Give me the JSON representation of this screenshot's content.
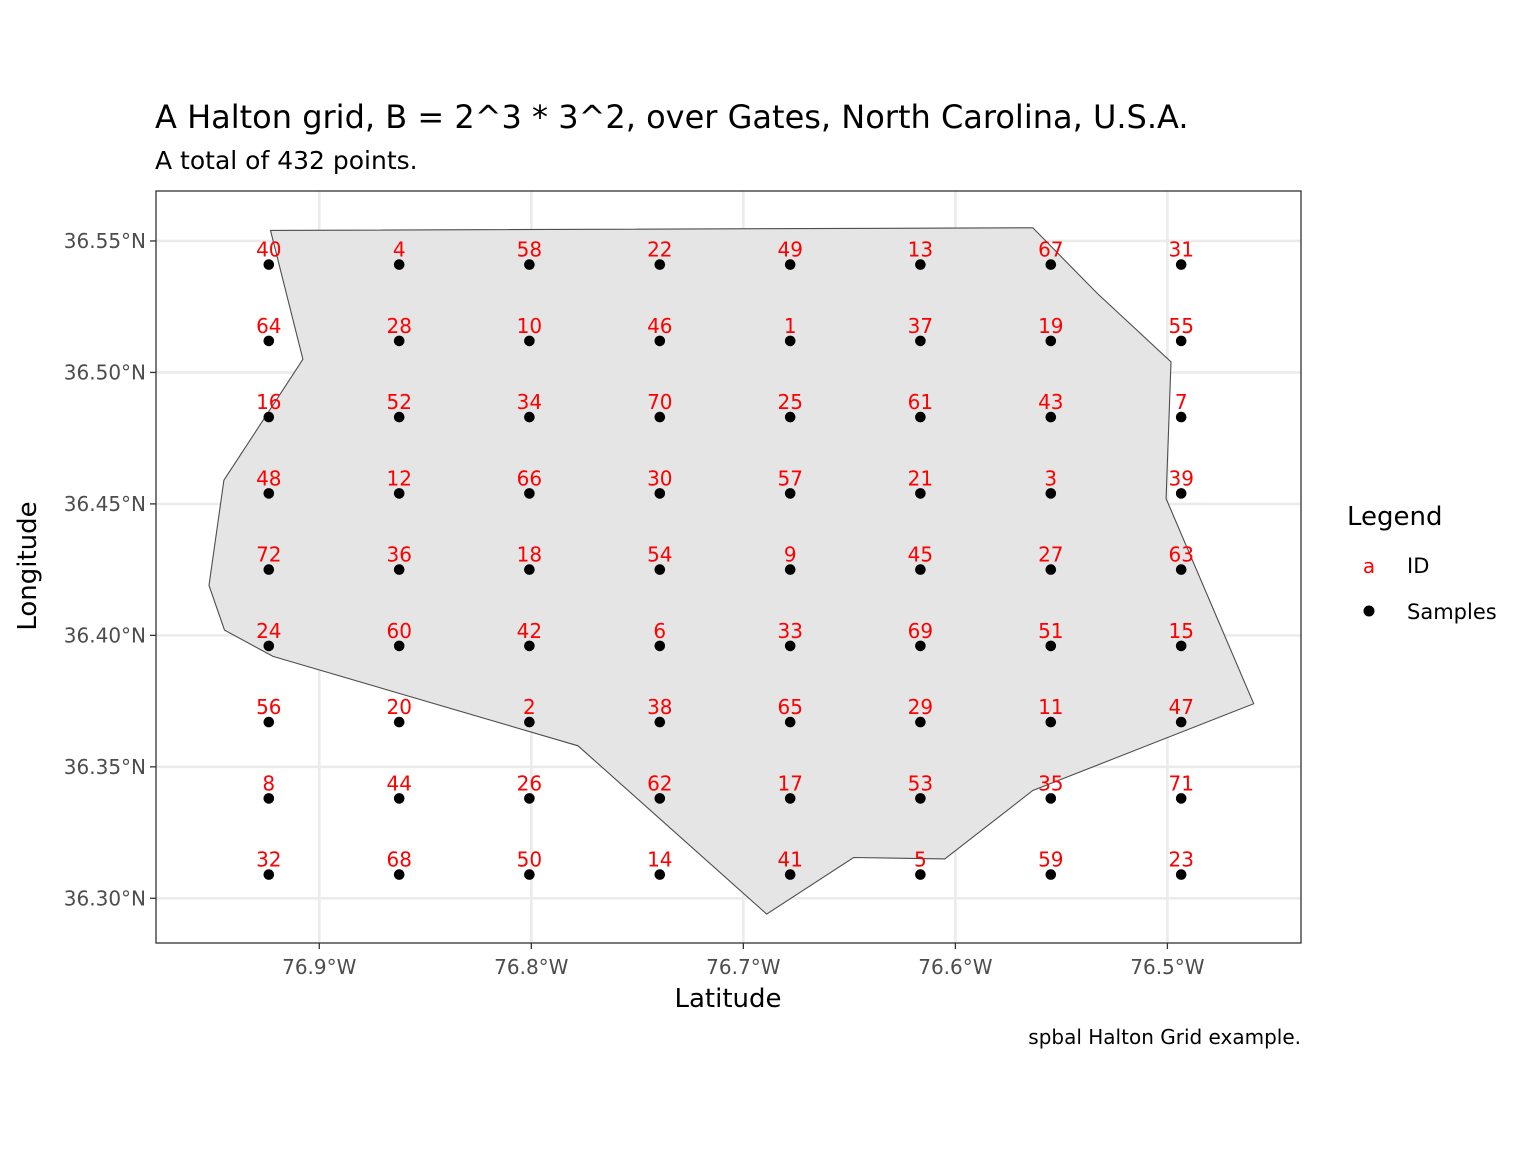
{
  "chart_data": {
    "type": "scatter",
    "title": "A Halton grid, B = 2^3 * 3^2, over Gates, North Carolina, U.S.A.",
    "subtitle": "A total of 432 points.",
    "caption": "spbal Halton Grid example.",
    "xlabel": "Latitude",
    "ylabel": "Longitude",
    "xlim": [
      -76.977,
      -76.437
    ],
    "ylim": [
      36.283,
      36.569
    ],
    "grid": true,
    "x_ticks": [
      {
        "value": -76.9,
        "label": "76.9°W"
      },
      {
        "value": -76.8,
        "label": "76.8°W"
      },
      {
        "value": -76.7,
        "label": "76.7°W"
      },
      {
        "value": -76.6,
        "label": "76.6°W"
      },
      {
        "value": -76.5,
        "label": "76.5°W"
      }
    ],
    "y_ticks": [
      {
        "value": 36.3,
        "label": "36.30°N"
      },
      {
        "value": 36.35,
        "label": "36.35°N"
      },
      {
        "value": 36.4,
        "label": "36.40°N"
      },
      {
        "value": 36.45,
        "label": "36.45°N"
      },
      {
        "value": 36.5,
        "label": "36.50°N"
      },
      {
        "value": 36.55,
        "label": "36.55°N"
      }
    ],
    "grid_x": [
      -76.9238,
      -76.8623,
      -76.8009,
      -76.7394,
      -76.6779,
      -76.6165,
      -76.555,
      -76.4935
    ],
    "grid_y": [
      36.541,
      36.512,
      36.483,
      36.454,
      36.425,
      36.396,
      36.367,
      36.338,
      36.309
    ],
    "ids": [
      [
        40,
        4,
        58,
        22,
        49,
        13,
        67,
        31
      ],
      [
        64,
        28,
        10,
        46,
        1,
        37,
        19,
        55
      ],
      [
        16,
        52,
        34,
        70,
        25,
        61,
        43,
        7
      ],
      [
        48,
        12,
        66,
        30,
        57,
        21,
        3,
        39
      ],
      [
        72,
        36,
        18,
        54,
        9,
        45,
        27,
        63
      ],
      [
        24,
        60,
        42,
        6,
        33,
        69,
        51,
        15
      ],
      [
        56,
        20,
        2,
        38,
        65,
        29,
        11,
        47
      ],
      [
        8,
        44,
        26,
        62,
        17,
        53,
        35,
        71
      ],
      [
        32,
        68,
        50,
        14,
        41,
        5,
        59,
        23
      ]
    ],
    "boundary": [
      [
        -76.923,
        36.554
      ],
      [
        -76.5635,
        36.555
      ],
      [
        -76.533,
        36.53
      ],
      [
        -76.4983,
        36.504
      ],
      [
        -76.5006,
        36.452
      ],
      [
        -76.4593,
        36.374
      ],
      [
        -76.5635,
        36.341
      ],
      [
        -76.605,
        36.315
      ],
      [
        -76.648,
        36.3155
      ],
      [
        -76.689,
        36.294
      ],
      [
        -76.778,
        36.358
      ],
      [
        -76.9218,
        36.392
      ],
      [
        -76.9447,
        36.402
      ],
      [
        -76.952,
        36.419
      ],
      [
        -76.945,
        36.459
      ],
      [
        -76.9077,
        36.505
      ]
    ],
    "colors": {
      "id_label": "#ff0000",
      "points": "#000000",
      "polygon_fill": "#e5e5e5",
      "polygon_stroke": "#4d4d4d",
      "gridline": "#ebebeb",
      "panel_border": "#333333"
    },
    "legend": {
      "position": "right",
      "title": "Legend",
      "entries": [
        {
          "key_text": "a",
          "label": "ID",
          "key_color": "#ff0000"
        },
        {
          "key_symbol": "point",
          "label": "Samples",
          "key_color": "#000000"
        }
      ]
    }
  }
}
